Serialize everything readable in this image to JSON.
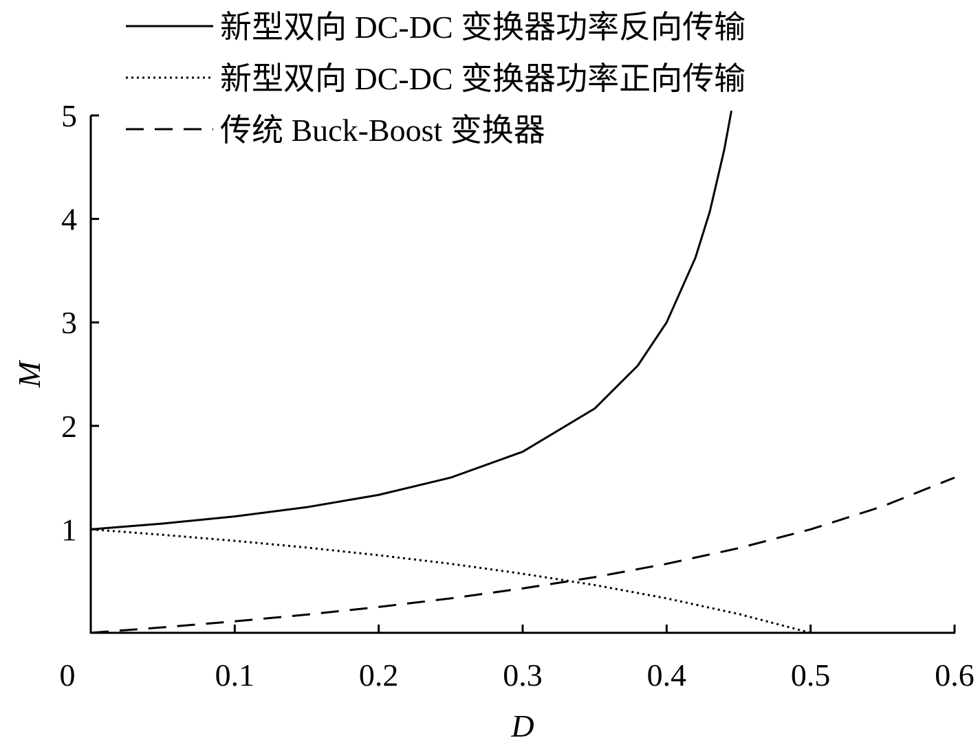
{
  "chart_data": {
    "type": "line",
    "title": "",
    "xlabel": "D",
    "ylabel": "M",
    "xlim": [
      0,
      0.6
    ],
    "ylim": [
      0,
      5
    ],
    "xticks": [
      "0",
      "0.1",
      "0.2",
      "0.3",
      "0.4",
      "0.5",
      "0.6"
    ],
    "xtick_values": [
      0,
      0.1,
      0.2,
      0.3,
      0.4,
      0.5,
      0.6
    ],
    "yticks": [
      "1",
      "2",
      "3",
      "4",
      "5"
    ],
    "ytick_values": [
      1,
      2,
      3,
      4,
      5
    ],
    "grid": false,
    "legend_position": "top",
    "series": [
      {
        "name": "新型双向 DC-DC 变换器功率反向传输",
        "style": "solid",
        "x": [
          0,
          0.05,
          0.1,
          0.15,
          0.2,
          0.25,
          0.3,
          0.35,
          0.38,
          0.4,
          0.42,
          0.43,
          0.44,
          0.445
        ],
        "y": [
          1,
          1.056,
          1.125,
          1.214,
          1.333,
          1.5,
          1.75,
          2.167,
          2.583,
          3.0,
          3.625,
          4.071,
          4.667,
          5.045
        ]
      },
      {
        "name": "新型双向 DC-DC 变换器功率正向传输",
        "style": "dotted",
        "x": [
          0,
          0.05,
          0.1,
          0.15,
          0.2,
          0.25,
          0.3,
          0.35,
          0.4,
          0.45,
          0.5
        ],
        "y": [
          1,
          0.947,
          0.889,
          0.824,
          0.75,
          0.667,
          0.571,
          0.462,
          0.333,
          0.182,
          0
        ]
      },
      {
        "name": "传统 Buck-Boost 变换器",
        "style": "dashed",
        "x": [
          0,
          0.05,
          0.1,
          0.15,
          0.2,
          0.25,
          0.3,
          0.35,
          0.4,
          0.45,
          0.5,
          0.55,
          0.6
        ],
        "y": [
          0,
          0.053,
          0.111,
          0.176,
          0.25,
          0.333,
          0.429,
          0.538,
          0.667,
          0.818,
          1,
          1.222,
          1.5
        ]
      }
    ]
  }
}
